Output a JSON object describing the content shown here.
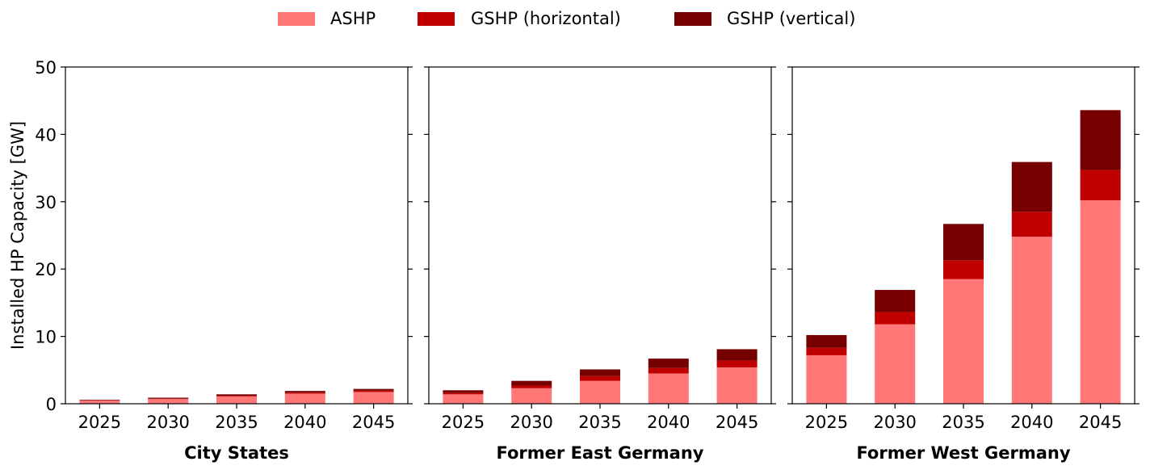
{
  "chart_data": {
    "type": "bar",
    "stacked": true,
    "legend": {
      "placement": "top-center",
      "entries": [
        {
          "label": "ASHP",
          "color": "#ff7777"
        },
        {
          "label": "GSHP (horizontal)",
          "color": "#c00000"
        },
        {
          "label": "GSHP (vertical)",
          "color": "#760000"
        }
      ]
    },
    "ylabel": "Installed HP Capacity [GW]",
    "ylim": [
      0,
      50
    ],
    "yticks": [
      "0",
      "10",
      "20",
      "30",
      "40",
      "50"
    ],
    "grid": false,
    "panels": [
      {
        "title": "City States",
        "categories": [
          "2025",
          "2030",
          "2035",
          "2040",
          "2045"
        ],
        "series": [
          {
            "name": "ASHP",
            "values": [
              0.5,
              0.7,
              1.1,
              1.5,
              1.75
            ]
          },
          {
            "name": "GSHP (horizontal)",
            "values": [
              0.03,
              0.05,
              0.1,
              0.15,
              0.2
            ]
          },
          {
            "name": "GSHP (vertical)",
            "values": [
              0.07,
              0.15,
              0.2,
              0.25,
              0.25
            ]
          }
        ]
      },
      {
        "title": "Former East Germany",
        "categories": [
          "2025",
          "2030",
          "2035",
          "2040",
          "2045"
        ],
        "series": [
          {
            "name": "ASHP",
            "values": [
              1.4,
              2.3,
              3.4,
              4.5,
              5.4
            ]
          },
          {
            "name": "GSHP (horizontal)",
            "values": [
              0.2,
              0.4,
              0.7,
              0.8,
              1.0
            ]
          },
          {
            "name": "GSHP (vertical)",
            "values": [
              0.4,
              0.7,
              1.0,
              1.4,
              1.7
            ]
          }
        ]
      },
      {
        "title": "Former West Germany",
        "categories": [
          "2025",
          "2030",
          "2035",
          "2040",
          "2045"
        ],
        "series": [
          {
            "name": "ASHP",
            "values": [
              7.2,
              11.8,
              18.5,
              24.8,
              30.2
            ]
          },
          {
            "name": "GSHP (horizontal)",
            "values": [
              1.1,
              1.8,
              2.8,
              3.7,
              4.5
            ]
          },
          {
            "name": "GSHP (vertical)",
            "values": [
              1.9,
              3.3,
              5.4,
              7.4,
              8.9
            ]
          }
        ]
      }
    ]
  }
}
